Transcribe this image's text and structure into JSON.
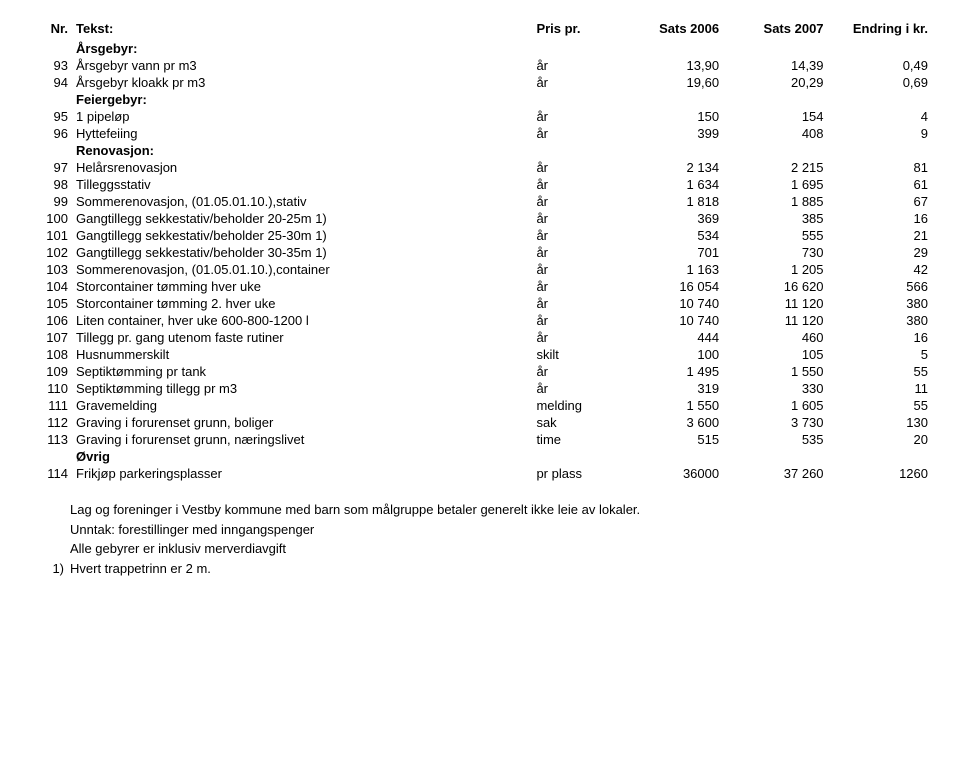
{
  "header": {
    "nr": "Nr.",
    "tekst": "Tekst:",
    "pris": "Pris pr.",
    "s06": "Sats 2006",
    "s07": "Sats 2007",
    "endr": "Endring i kr."
  },
  "sections": {
    "aarsgebyr": "Årsgebyr:",
    "feiergebyr": "Feiergebyr:",
    "renovasjon": "Renovasjon:",
    "ovrig": "Øvrig"
  },
  "rows": [
    {
      "nr": "93",
      "tekst": "Årsgebyr vann pr m3",
      "enhet": "år",
      "s06": "13,90",
      "s07": "14,39",
      "endr": "0,49"
    },
    {
      "nr": "94",
      "tekst": "Årsgebyr kloakk pr m3",
      "enhet": "år",
      "s06": "19,60",
      "s07": "20,29",
      "endr": "0,69"
    },
    {
      "nr": "95",
      "tekst": "1 pipeløp",
      "enhet": "år",
      "s06": "150",
      "s07": "154",
      "endr": "4"
    },
    {
      "nr": "96",
      "tekst": "Hyttefeiing",
      "enhet": "år",
      "s06": "399",
      "s07": "408",
      "endr": "9"
    },
    {
      "nr": "97",
      "tekst": "Helårsrenovasjon",
      "enhet": "år",
      "s06": "2 134",
      "s07": "2 215",
      "endr": "81"
    },
    {
      "nr": "98",
      "tekst": "Tilleggsstativ",
      "enhet": "år",
      "s06": "1 634",
      "s07": "1 695",
      "endr": "61"
    },
    {
      "nr": "99",
      "tekst": "Sommerenovasjon, (01.05.01.10.),stativ",
      "enhet": "år",
      "s06": "1 818",
      "s07": "1 885",
      "endr": "67"
    },
    {
      "nr": "100",
      "tekst": "Gangtillegg sekkestativ/beholder 20-25m 1)",
      "enhet": "år",
      "s06": "369",
      "s07": "385",
      "endr": "16"
    },
    {
      "nr": "101",
      "tekst": "Gangtillegg sekkestativ/beholder 25-30m 1)",
      "enhet": "år",
      "s06": "534",
      "s07": "555",
      "endr": "21"
    },
    {
      "nr": "102",
      "tekst": "Gangtillegg sekkestativ/beholder 30-35m 1)",
      "enhet": "år",
      "s06": "701",
      "s07": "730",
      "endr": "29"
    },
    {
      "nr": "103",
      "tekst": "Sommerenovasjon, (01.05.01.10.),container",
      "enhet": "år",
      "s06": "1 163",
      "s07": "1 205",
      "endr": "42"
    },
    {
      "nr": "104",
      "tekst": "Storcontainer tømming hver uke",
      "enhet": "år",
      "s06": "16 054",
      "s07": "16 620",
      "endr": "566"
    },
    {
      "nr": "105",
      "tekst": "Storcontainer tømming 2. hver uke",
      "enhet": "år",
      "s06": "10 740",
      "s07": "11 120",
      "endr": "380"
    },
    {
      "nr": "106",
      "tekst": "Liten container, hver uke 600-800-1200 l",
      "enhet": "år",
      "s06": "10 740",
      "s07": "11 120",
      "endr": "380"
    },
    {
      "nr": "107",
      "tekst": "Tillegg pr. gang utenom faste rutiner",
      "enhet": "år",
      "s06": "444",
      "s07": "460",
      "endr": "16"
    },
    {
      "nr": "108",
      "tekst": "Husnummerskilt",
      "enhet": "skilt",
      "s06": "100",
      "s07": "105",
      "endr": "5"
    },
    {
      "nr": "109",
      "tekst": "Septiktømming pr tank",
      "enhet": "år",
      "s06": "1 495",
      "s07": "1 550",
      "endr": "55"
    },
    {
      "nr": "110",
      "tekst": "Septiktømming tillegg pr m3",
      "enhet": "år",
      "s06": "319",
      "s07": "330",
      "endr": "11"
    },
    {
      "nr": "111",
      "tekst": "Gravemelding",
      "enhet": "melding",
      "s06": "1 550",
      "s07": "1 605",
      "endr": "55"
    },
    {
      "nr": "112",
      "tekst": "Graving i forurenset grunn, boliger",
      "enhet": "sak",
      "s06": "3 600",
      "s07": "3 730",
      "endr": "130"
    },
    {
      "nr": "113",
      "tekst": "Graving i forurenset grunn, næringslivet",
      "enhet": "time",
      "s06": "515",
      "s07": "535",
      "endr": "20"
    },
    {
      "nr": "114",
      "tekst": "Frikjøp parkeringsplasser",
      "enhet": "pr plass",
      "s06": "36000",
      "s07": "37 260",
      "endr": "1260"
    }
  ],
  "footer": {
    "line1": "Lag og foreninger i Vestby kommune med barn som målgruppe betaler generelt ikke leie av lokaler.",
    "line2": "Unntak: forestillinger med inngangspenger",
    "line3": "Alle gebyrer er inklusiv merverdiavgift",
    "note_nr": "1)",
    "note_text": "Hvert trappetrinn er 2 m."
  }
}
